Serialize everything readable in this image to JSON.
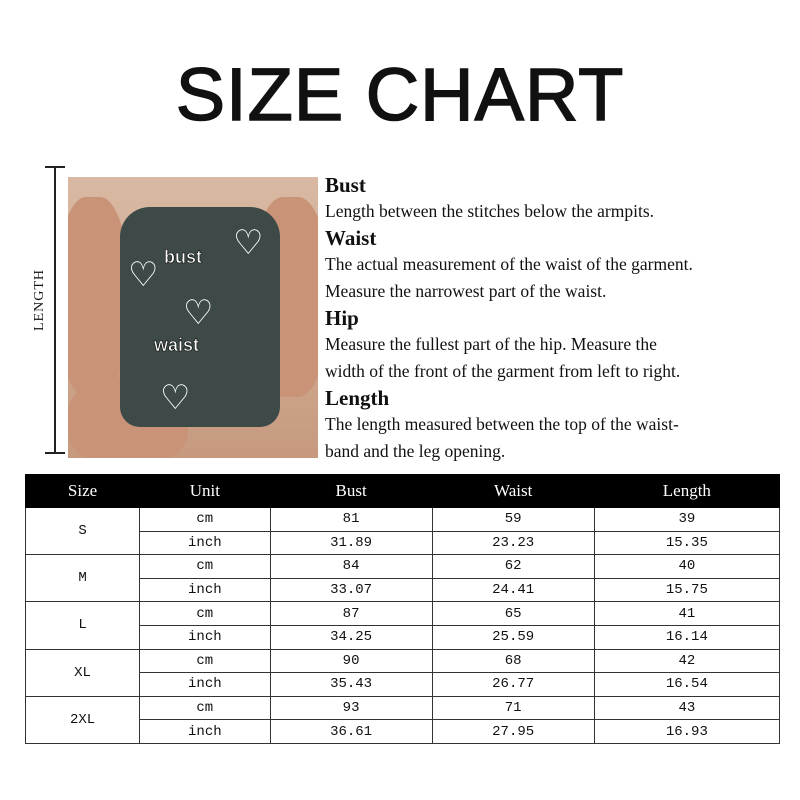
{
  "title": "SIZE CHART",
  "length_label": "LENGTH",
  "photo": {
    "labels": {
      "bust": "bust",
      "waist": "waist"
    }
  },
  "descriptions": [
    {
      "heading": "Bust",
      "lines": [
        "Length between the stitches below the armpits."
      ]
    },
    {
      "heading": "Waist",
      "lines": [
        "The actual measurement of the waist of the garment.",
        "Measure the narrowest part of the waist."
      ]
    },
    {
      "heading": "Hip",
      "lines": [
        "Measure the fullest part of the  hip. Measure the",
        "width of the front of the garment from left to right."
      ]
    },
    {
      "heading": "Length",
      "lines": [
        "The length measured between the top of the waist-",
        "band and the leg opening."
      ]
    }
  ],
  "table": {
    "headers": [
      "Size",
      "Unit",
      "Bust",
      "Waist",
      "Length"
    ],
    "rows": [
      {
        "size": "S",
        "cm": [
          "cm",
          "81",
          "59",
          "39"
        ],
        "inch": [
          "inch",
          "31.89",
          "23.23",
          "15.35"
        ]
      },
      {
        "size": "M",
        "cm": [
          "cm",
          "84",
          "62",
          "40"
        ],
        "inch": [
          "inch",
          "33.07",
          "24.41",
          "15.75"
        ]
      },
      {
        "size": "L",
        "cm": [
          "cm",
          "87",
          "65",
          "41"
        ],
        "inch": [
          "inch",
          "34.25",
          "25.59",
          "16.14"
        ]
      },
      {
        "size": "XL",
        "cm": [
          "cm",
          "90",
          "68",
          "42"
        ],
        "inch": [
          "inch",
          "35.43",
          "26.77",
          "16.54"
        ]
      },
      {
        "size": "2XL",
        "cm": [
          "cm",
          "93",
          "71",
          "43"
        ],
        "inch": [
          "inch",
          "36.61",
          "27.95",
          "16.93"
        ]
      }
    ]
  }
}
